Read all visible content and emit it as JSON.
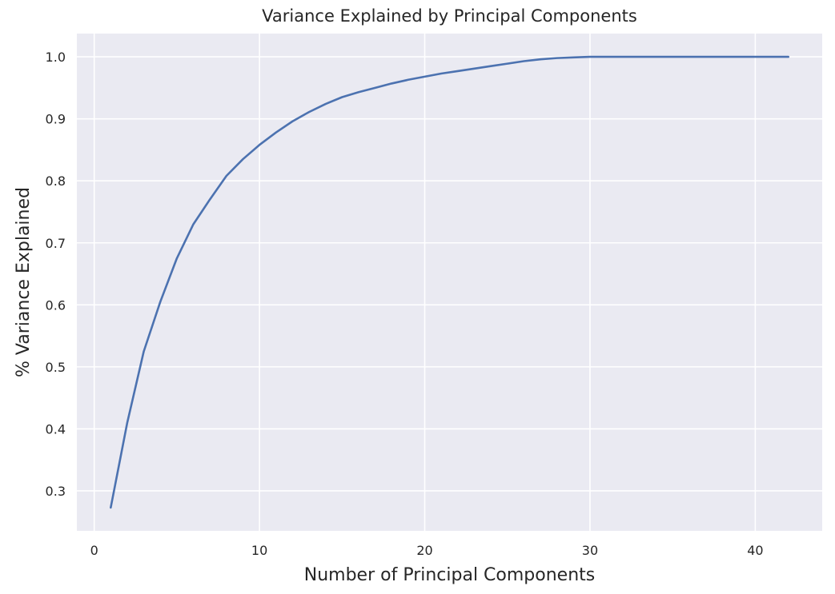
{
  "chart_data": {
    "type": "line",
    "title": "Variance Explained by Principal Components",
    "xlabel": "Number of Principal Components",
    "ylabel": "% Variance Explained",
    "xlim": [
      -1.05,
      44.05
    ],
    "ylim": [
      0.2355,
      1.0375
    ],
    "xticks": [
      0,
      10,
      20,
      30,
      40
    ],
    "yticks": [
      0.3,
      0.4,
      0.5,
      0.6,
      0.7,
      0.8,
      0.9,
      1.0
    ],
    "xtick_labels": [
      "0",
      "10",
      "20",
      "30",
      "40"
    ],
    "ytick_labels": [
      "0.3",
      "0.4",
      "0.5",
      "0.6",
      "0.7",
      "0.8",
      "0.9",
      "1.0"
    ],
    "grid": true,
    "colors": {
      "plot_background": "#EAEAF2",
      "grid": "#FFFFFF",
      "line": "#4C72B0",
      "text": "#262626"
    },
    "series": [
      {
        "x": [
          1,
          2,
          3,
          4,
          5,
          6,
          7,
          8,
          9,
          10,
          11,
          12,
          13,
          14,
          15,
          16,
          17,
          18,
          19,
          20,
          21,
          22,
          23,
          24,
          25,
          26,
          27,
          28,
          29,
          30,
          31,
          32,
          33,
          34,
          35,
          36,
          37,
          38,
          39,
          40,
          41,
          42
        ],
        "values": [
          0.273,
          0.41,
          0.525,
          0.605,
          0.675,
          0.73,
          0.77,
          0.808,
          0.835,
          0.858,
          0.878,
          0.896,
          0.911,
          0.924,
          0.935,
          0.943,
          0.95,
          0.957,
          0.963,
          0.968,
          0.973,
          0.977,
          0.981,
          0.985,
          0.989,
          0.993,
          0.996,
          0.998,
          0.999,
          1.0,
          1.0,
          1.0,
          1.0,
          1.0,
          1.0,
          1.0,
          1.0,
          1.0,
          1.0,
          1.0,
          1.0,
          1.0
        ]
      }
    ]
  }
}
